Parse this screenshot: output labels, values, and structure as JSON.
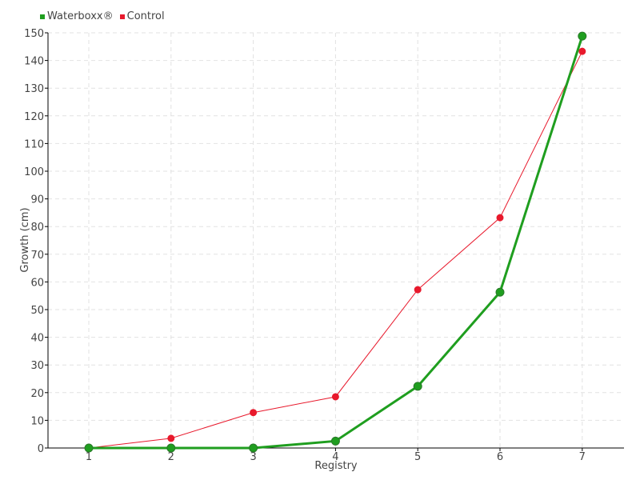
{
  "chart_data": {
    "type": "line",
    "title": "",
    "xlabel": "Registry",
    "ylabel": "Growth (cm)",
    "categories": [
      "1",
      "2",
      "3",
      "4",
      "5",
      "6",
      "7"
    ],
    "x": [
      1,
      2,
      3,
      4,
      5,
      6,
      7
    ],
    "ylim": [
      0,
      150
    ],
    "yticks": [
      0,
      10,
      20,
      30,
      40,
      50,
      60,
      70,
      80,
      90,
      100,
      110,
      120,
      130,
      140,
      150
    ],
    "grid": true,
    "legend_position": "top-left",
    "series": [
      {
        "name": "Waterboxx®",
        "color": "#1f9e1f",
        "values": [
          0,
          0,
          0,
          2.5,
          22.3,
          56.3,
          148.8
        ]
      },
      {
        "name": "Control",
        "color": "#e8192c",
        "values": [
          0,
          3.5,
          12.8,
          18.5,
          57.2,
          83.2,
          143.3
        ]
      }
    ]
  }
}
